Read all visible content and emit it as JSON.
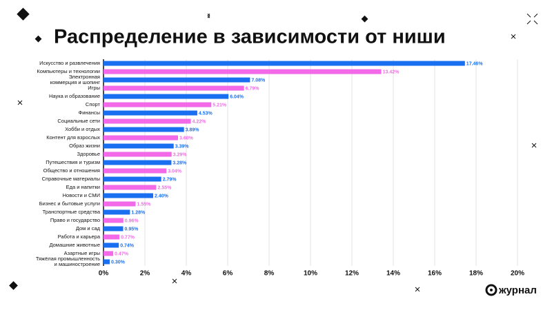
{
  "chart_data": {
    "type": "bar",
    "orientation": "horizontal",
    "title": "Распределение в зависимости от ниши",
    "categories": [
      "Искусство и развлечения",
      "Компьютеры и технологии",
      "Электронная\nкоммерция и шопинг",
      "Игры",
      "Наука и образование",
      "Спорт",
      "Финансы",
      "Социальные сети",
      "Хобби и отдых",
      "Контент для взрослых",
      "Образ жизни",
      "Здоровье",
      "Путешествия и туризм",
      "Общество и отношения",
      "Справочные материалы",
      "Еда и напитки",
      "Новости и СМИ",
      "Бизнес и бытовые услуги",
      "Транспортные средства",
      "Право и государство",
      "Дом и сад",
      "Работа и карьера",
      "Домашние животные",
      "Азартные игры",
      "Тяжёлая промышленность\nи машиностроение"
    ],
    "values": [
      17.46,
      13.42,
      7.08,
      6.79,
      6.04,
      5.21,
      4.53,
      4.22,
      3.89,
      3.6,
      3.39,
      3.29,
      3.28,
      3.04,
      2.79,
      2.55,
      2.4,
      1.55,
      1.28,
      0.96,
      0.95,
      0.77,
      0.74,
      0.47,
      0.3
    ],
    "value_labels": [
      "17.46%",
      "13.42%",
      "7.08%",
      "6.79%",
      "6.04%",
      "5.21%",
      "4.53%",
      "4.22%",
      "3.89%",
      "3.60%",
      "3.39%",
      "3.29%",
      "3.28%",
      "3.04%",
      "2.79%",
      "2.55%",
      "2.40%",
      "1.55%",
      "1.28%",
      "0.96%",
      "0.95%",
      "0.77%",
      "0.74%",
      "0.47%",
      "0.30%"
    ],
    "colors": [
      "#1a6ff0",
      "#f26ae8"
    ],
    "xlim": [
      0,
      20
    ],
    "xticks": [
      {
        "value": 0,
        "label": "0%"
      },
      {
        "value": 2,
        "label": "2%"
      },
      {
        "value": 4,
        "label": "4%"
      },
      {
        "value": 6,
        "label": "6%"
      },
      {
        "value": 8,
        "label": "8%"
      },
      {
        "value": 10,
        "label": "10%"
      },
      {
        "value": 12,
        "label": "12%"
      },
      {
        "value": 14,
        "label": "14%"
      },
      {
        "value": 16,
        "label": "16%"
      },
      {
        "value": 18,
        "label": "18%"
      },
      {
        "value": 20,
        "label": "20%"
      }
    ],
    "grid": true
  },
  "brand": "журнал"
}
